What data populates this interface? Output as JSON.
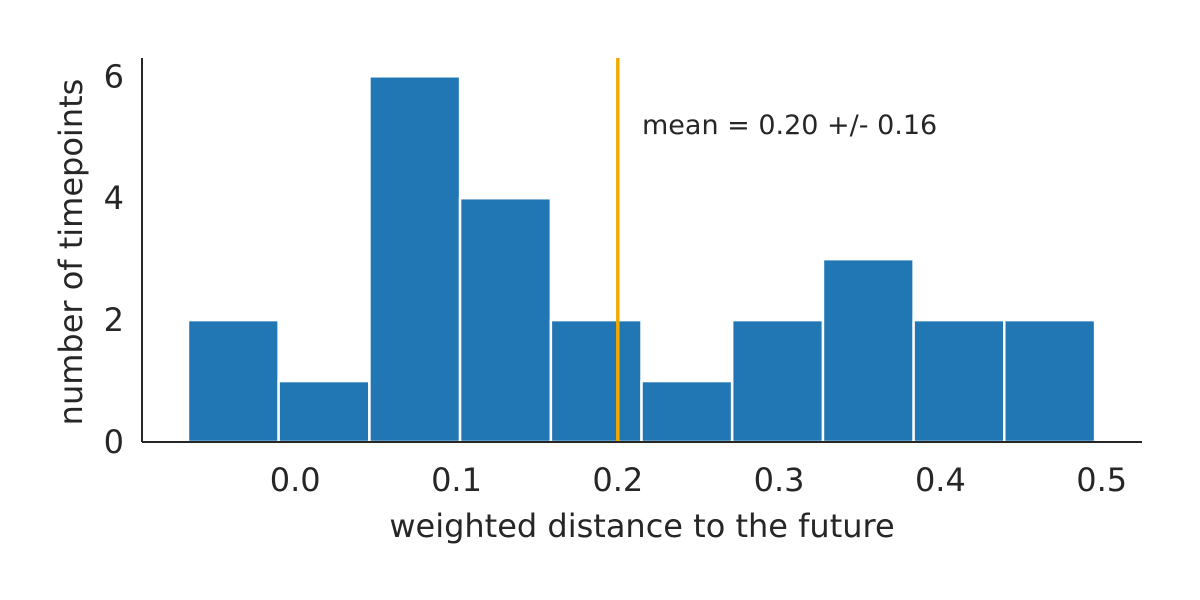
{
  "chart_data": {
    "type": "bar",
    "subtype": "histogram",
    "bins": [
      {
        "x0": -0.0665,
        "x1": -0.0103,
        "count": 2
      },
      {
        "x0": -0.0103,
        "x1": 0.046,
        "count": 1
      },
      {
        "x0": 0.046,
        "x1": 0.1022,
        "count": 6
      },
      {
        "x0": 0.1022,
        "x1": 0.1585,
        "count": 4
      },
      {
        "x0": 0.1585,
        "x1": 0.2147,
        "count": 2
      },
      {
        "x0": 0.2147,
        "x1": 0.2709,
        "count": 1
      },
      {
        "x0": 0.2709,
        "x1": 0.3272,
        "count": 2
      },
      {
        "x0": 0.3272,
        "x1": 0.3834,
        "count": 3
      },
      {
        "x0": 0.3834,
        "x1": 0.4396,
        "count": 2
      },
      {
        "x0": 0.4396,
        "x1": 0.4959,
        "count": 2
      }
    ],
    "xlabel": "weighted distance to the future",
    "ylabel": "number of timepoints",
    "xlim": [
      -0.095,
      0.525
    ],
    "ylim": [
      0,
      6.3
    ],
    "xticks": [
      0.0,
      0.1,
      0.2,
      0.3,
      0.4,
      0.5
    ],
    "xtick_labels": [
      "0.0",
      "0.1",
      "0.2",
      "0.3",
      "0.4",
      "0.5"
    ],
    "yticks": [
      0,
      2,
      4,
      6
    ],
    "ytick_labels": [
      "0",
      "2",
      "4",
      "6"
    ],
    "mean_line": {
      "x": 0.2,
      "color": "#f2a900"
    },
    "annotation": "mean = 0.20 +/- 0.16",
    "grid": false,
    "bar_color": "#2077b4"
  }
}
